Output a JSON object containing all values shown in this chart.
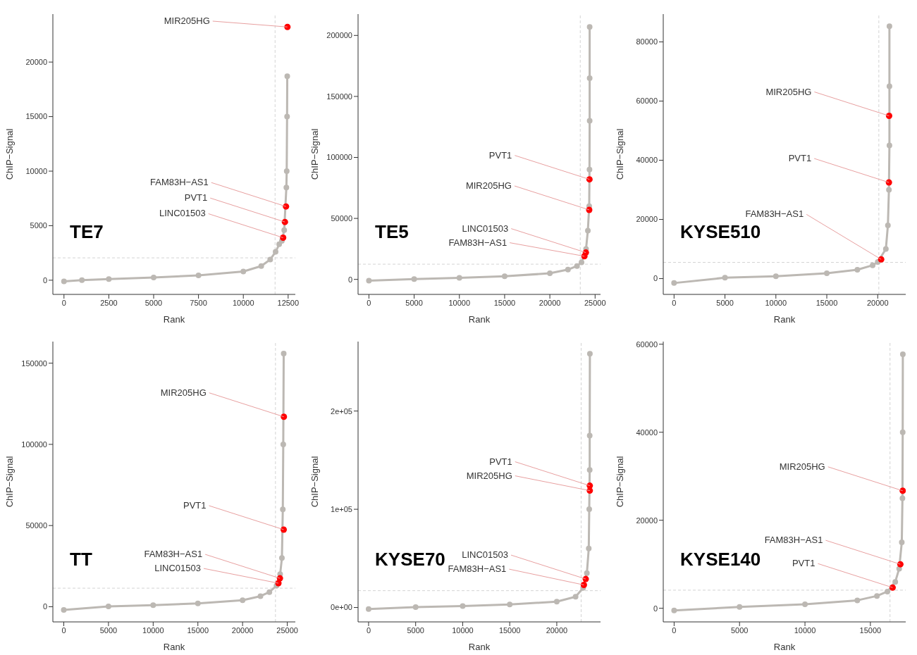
{
  "chart_data": [
    {
      "type": "line",
      "title": "TE7",
      "xlabel": "Rank",
      "ylabel": "ChIP−Signal",
      "marker": "circle",
      "line_style": "solid",
      "xlim": [
        -620,
        12900
      ],
      "xticks": [
        0,
        2500,
        5000,
        7500,
        10000,
        12500
      ],
      "ylim": [
        -1300,
        24400
      ],
      "yticks": [
        0,
        5000,
        10000,
        15000,
        20000
      ],
      "series": [
        {
          "type": "line",
          "color": "#bcb8b3",
          "x": [
            0,
            1000,
            2500,
            5000,
            7500,
            10000,
            11000,
            11500,
            11800,
            12000,
            12150,
            12280,
            12400,
            12420,
            12440,
            12450
          ],
          "values": [
            -100,
            0,
            100,
            250,
            450,
            800,
            1300,
            1900,
            2600,
            3300,
            3600,
            4600,
            8500,
            10000,
            15000,
            18700
          ]
        },
        {
          "type": "scatter",
          "color": "#ff0000",
          "x": [
            12460,
            12380,
            12320,
            12220
          ],
          "values": [
            23220,
            6760,
            5340,
            3900
          ]
        }
      ],
      "ref_lines": [
        {
          "axis": "x",
          "value": 11770,
          "color": "#d3d3d3",
          "line_style": "dashed"
        },
        {
          "axis": "y",
          "value": 2050,
          "color": "#d3d3d3",
          "line_style": "dashed"
        }
      ],
      "annotations": [
        {
          "text": "MIR205HG",
          "x": 12460,
          "y": 23220
        },
        {
          "text": "FAM83H−AS1",
          "x": 12380,
          "y": 6760
        },
        {
          "text": "PVT1",
          "x": 12320,
          "y": 5340
        },
        {
          "text": "LINC01503",
          "x": 12220,
          "y": 3900
        }
      ]
    },
    {
      "type": "line",
      "title": "TE5",
      "xlabel": "Rank",
      "ylabel": "ChIP−Signal",
      "marker": "circle",
      "line_style": "solid",
      "xlim": [
        -1200,
        25600
      ],
      "xticks": [
        0,
        5000,
        10000,
        15000,
        20000,
        25000
      ],
      "ylim": [
        -12300,
        217500
      ],
      "yticks": [
        0,
        50000,
        100000,
        150000,
        200000
      ],
      "series": [
        {
          "type": "line",
          "color": "#bcb8b3",
          "x": [
            0,
            5000,
            10000,
            15000,
            20000,
            22000,
            23000,
            23500,
            24000,
            24200,
            24350,
            24380,
            24400,
            24400,
            24400
          ],
          "values": [
            -1000,
            300,
            1200,
            2500,
            5000,
            8000,
            11000,
            14000,
            25000,
            40000,
            60000,
            90000,
            130000,
            165000,
            207000
          ]
        },
        {
          "type": "scatter",
          "color": "#ff0000",
          "x": [
            24380,
            24350,
            23980,
            23820
          ],
          "values": [
            82000,
            57000,
            22000,
            19000
          ]
        }
      ],
      "ref_lines": [
        {
          "axis": "x",
          "value": 23360,
          "color": "#d3d3d3",
          "line_style": "dashed"
        },
        {
          "axis": "y",
          "value": 12480,
          "color": "#d3d3d3",
          "line_style": "dashed"
        }
      ],
      "annotations": [
        {
          "text": "PVT1",
          "x": 24380,
          "y": 82000
        },
        {
          "text": "MIR205HG",
          "x": 24350,
          "y": 57000
        },
        {
          "text": "LINC01503",
          "x": 23980,
          "y": 22000
        },
        {
          "text": "FAM83H−AS1",
          "x": 23820,
          "y": 19000
        }
      ]
    },
    {
      "type": "line",
      "title": "KYSE510",
      "xlabel": "Rank",
      "ylabel": "ChIP−Signal",
      "marker": "circle",
      "line_style": "solid",
      "xlim": [
        -1060,
        22750
      ],
      "xticks": [
        0,
        5000,
        10000,
        15000,
        20000
      ],
      "ylim": [
        -5340,
        89400
      ],
      "yticks": [
        0,
        20000,
        40000,
        60000,
        80000
      ],
      "series": [
        {
          "type": "line",
          "color": "#bcb8b3",
          "x": [
            0,
            5000,
            10000,
            15000,
            18000,
            19500,
            20000,
            20800,
            21000,
            21100,
            21150,
            21150,
            21150
          ],
          "values": [
            -1500,
            300,
            800,
            1800,
            3000,
            4500,
            5600,
            10000,
            18000,
            30000,
            45000,
            65000,
            85300
          ]
        },
        {
          "type": "scatter",
          "color": "#ff0000",
          "x": [
            21120,
            21100,
            20340
          ],
          "values": [
            55000,
            32500,
            6500
          ]
        }
      ],
      "ref_lines": [
        {
          "axis": "x",
          "value": 20110,
          "color": "#d3d3d3",
          "line_style": "dashed"
        },
        {
          "axis": "y",
          "value": 5490,
          "color": "#d3d3d3",
          "line_style": "dashed"
        }
      ],
      "annotations": [
        {
          "text": "MIR205HG",
          "x": 21120,
          "y": 55000
        },
        {
          "text": "PVT1",
          "x": 21100,
          "y": 32500
        },
        {
          "text": "FAM83H−AS1",
          "x": 20340,
          "y": 6500
        }
      ]
    },
    {
      "type": "line",
      "title": "TT",
      "xlabel": "Rank",
      "ylabel": "ChIP−Signal",
      "marker": "circle",
      "line_style": "solid",
      "xlim": [
        -1220,
        25900
      ],
      "xticks": [
        0,
        5000,
        10000,
        15000,
        20000,
        25000
      ],
      "ylim": [
        -9340,
        163300
      ],
      "yticks": [
        0,
        50000,
        100000,
        150000
      ],
      "series": [
        {
          "type": "line",
          "color": "#bcb8b3",
          "x": [
            0,
            5000,
            10000,
            15000,
            20000,
            22000,
            23000,
            23800,
            24200,
            24400,
            24500,
            24550,
            24600
          ],
          "values": [
            -2000,
            200,
            1000,
            2000,
            4000,
            6500,
            9000,
            13000,
            20000,
            30000,
            60000,
            100000,
            155900
          ]
        },
        {
          "type": "scatter",
          "color": "#ff0000",
          "x": [
            24620,
            24600,
            24180,
            24010
          ],
          "values": [
            117000,
            47500,
            17500,
            14500
          ]
        }
      ],
      "ref_lines": [
        {
          "axis": "x",
          "value": 23680,
          "color": "#d3d3d3",
          "line_style": "dashed"
        },
        {
          "axis": "y",
          "value": 11430,
          "color": "#d3d3d3",
          "line_style": "dashed"
        }
      ],
      "annotations": [
        {
          "text": "MIR205HG",
          "x": 24620,
          "y": 117000
        },
        {
          "text": "PVT1",
          "x": 24600,
          "y": 47500
        },
        {
          "text": "FAM83H−AS1",
          "x": 24180,
          "y": 17500
        },
        {
          "text": "LINC01503",
          "x": 24010,
          "y": 14500
        }
      ]
    },
    {
      "type": "line",
      "title": "KYSE70",
      "xlabel": "Rank",
      "ylabel": "ChIP−Signal",
      "marker": "circle",
      "line_style": "solid",
      "xlim": [
        -1120,
        24650
      ],
      "xticks": [
        0,
        5000,
        10000,
        15000,
        20000
      ],
      "ylim": [
        -14660,
        270700
      ],
      "yticks": [
        {
          "value": 0,
          "label": "0e+00"
        },
        {
          "value": 100000,
          "label": "1e+05"
        },
        {
          "value": 200000,
          "label": "2e+05"
        }
      ],
      "series": [
        {
          "type": "line",
          "color": "#bcb8b3",
          "x": [
            0,
            5000,
            10000,
            15000,
            20000,
            22000,
            22800,
            23200,
            23400,
            23450,
            23500,
            23500,
            23520
          ],
          "values": [
            -1500,
            400,
            1500,
            3000,
            6000,
            11000,
            20000,
            35000,
            60000,
            100000,
            140000,
            175000,
            258300
          ]
        },
        {
          "type": "scatter",
          "color": "#ff0000",
          "x": [
            23510,
            23510,
            23080,
            22880
          ],
          "values": [
            124000,
            119000,
            29000,
            23000
          ]
        }
      ],
      "ref_lines": [
        {
          "axis": "x",
          "value": 22590,
          "color": "#d3d3d3",
          "line_style": "dashed"
        },
        {
          "axis": "y",
          "value": 17120,
          "color": "#d3d3d3",
          "line_style": "dashed"
        }
      ],
      "annotations": [
        {
          "text": "PVT1",
          "x": 23510,
          "y": 124000
        },
        {
          "text": "MIR205HG",
          "x": 23510,
          "y": 119000
        },
        {
          "text": "LINC01503",
          "x": 23080,
          "y": 29000
        },
        {
          "text": "FAM83H−AS1",
          "x": 22880,
          "y": 23000
        }
      ]
    },
    {
      "type": "line",
      "title": "KYSE140",
      "xlabel": "Rank",
      "ylabel": "ChIP−Signal",
      "marker": "circle",
      "line_style": "solid",
      "xlim": [
        -830,
        17700
      ],
      "xticks": [
        0,
        5000,
        10000,
        15000
      ],
      "ylim": [
        -3100,
        60600
      ],
      "yticks": [
        0,
        20000,
        40000,
        60000
      ],
      "series": [
        {
          "type": "line",
          "color": "#bcb8b3",
          "x": [
            0,
            5000,
            10000,
            14000,
            15500,
            16300,
            16900,
            17200,
            17400,
            17450,
            17470,
            17480
          ],
          "values": [
            -500,
            300,
            900,
            1800,
            2800,
            3800,
            6000,
            9000,
            15000,
            25000,
            40000,
            57700
          ]
        },
        {
          "type": "scatter",
          "color": "#ff0000",
          "x": [
            17470,
            17290,
            16700
          ],
          "values": [
            26700,
            10000,
            4700
          ]
        }
      ],
      "ref_lines": [
        {
          "axis": "x",
          "value": 16500,
          "color": "#d3d3d3",
          "line_style": "dashed"
        },
        {
          "axis": "y",
          "value": 4110,
          "color": "#d3d3d3",
          "line_style": "dashed"
        }
      ],
      "annotations": [
        {
          "text": "MIR205HG",
          "x": 17470,
          "y": 26700
        },
        {
          "text": "FAM83H−AS1",
          "x": 17290,
          "y": 10000
        },
        {
          "text": "PVT1",
          "x": 16700,
          "y": 4700
        }
      ]
    }
  ]
}
